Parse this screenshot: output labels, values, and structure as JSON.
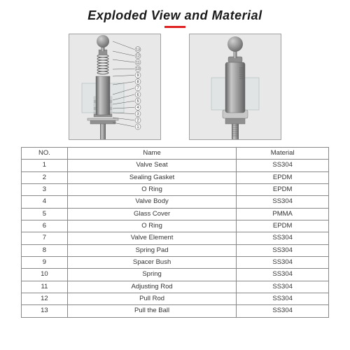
{
  "title": "Exploded View and Material",
  "title_fontsize": 18,
  "underline_color": "#e02020",
  "background_color": "#ffffff",
  "table": {
    "columns": [
      "NO.",
      "Name",
      "Material"
    ],
    "rows": [
      [
        "1",
        "Valve Seat",
        "SS304"
      ],
      [
        "2",
        "Sealing Gasket",
        "EPDM"
      ],
      [
        "3",
        "O Ring",
        "EPDM"
      ],
      [
        "4",
        "Valve Body",
        "SS304"
      ],
      [
        "5",
        "Glass Cover",
        "PMMA"
      ],
      [
        "6",
        "O Ring",
        "EPDM"
      ],
      [
        "7",
        "Valve Element",
        "SS304"
      ],
      [
        "8",
        "Spring Pad",
        "SS304"
      ],
      [
        "9",
        "Spacer Bush",
        "SS304"
      ],
      [
        "10",
        "Spring",
        "SS304"
      ],
      [
        "11",
        "Adjusting Rod",
        "SS304"
      ],
      [
        "12",
        "Pull Rod",
        "SS304"
      ],
      [
        "13",
        "Pull the Ball",
        "SS304"
      ]
    ],
    "border_color": "#888888",
    "font_size": 9.5
  },
  "diagram": {
    "box_bg": "#e8e8e8",
    "box_border": "#a0a0a0",
    "metal_light": "#c8c8c8",
    "metal_mid": "#909090",
    "metal_dark": "#606060",
    "ball_light": "#d0d0d0",
    "ball_dark": "#707070",
    "glass": "#d8e0e0",
    "callout_color": "#555555",
    "callout_fontsize": 5,
    "num_callouts": 13
  }
}
